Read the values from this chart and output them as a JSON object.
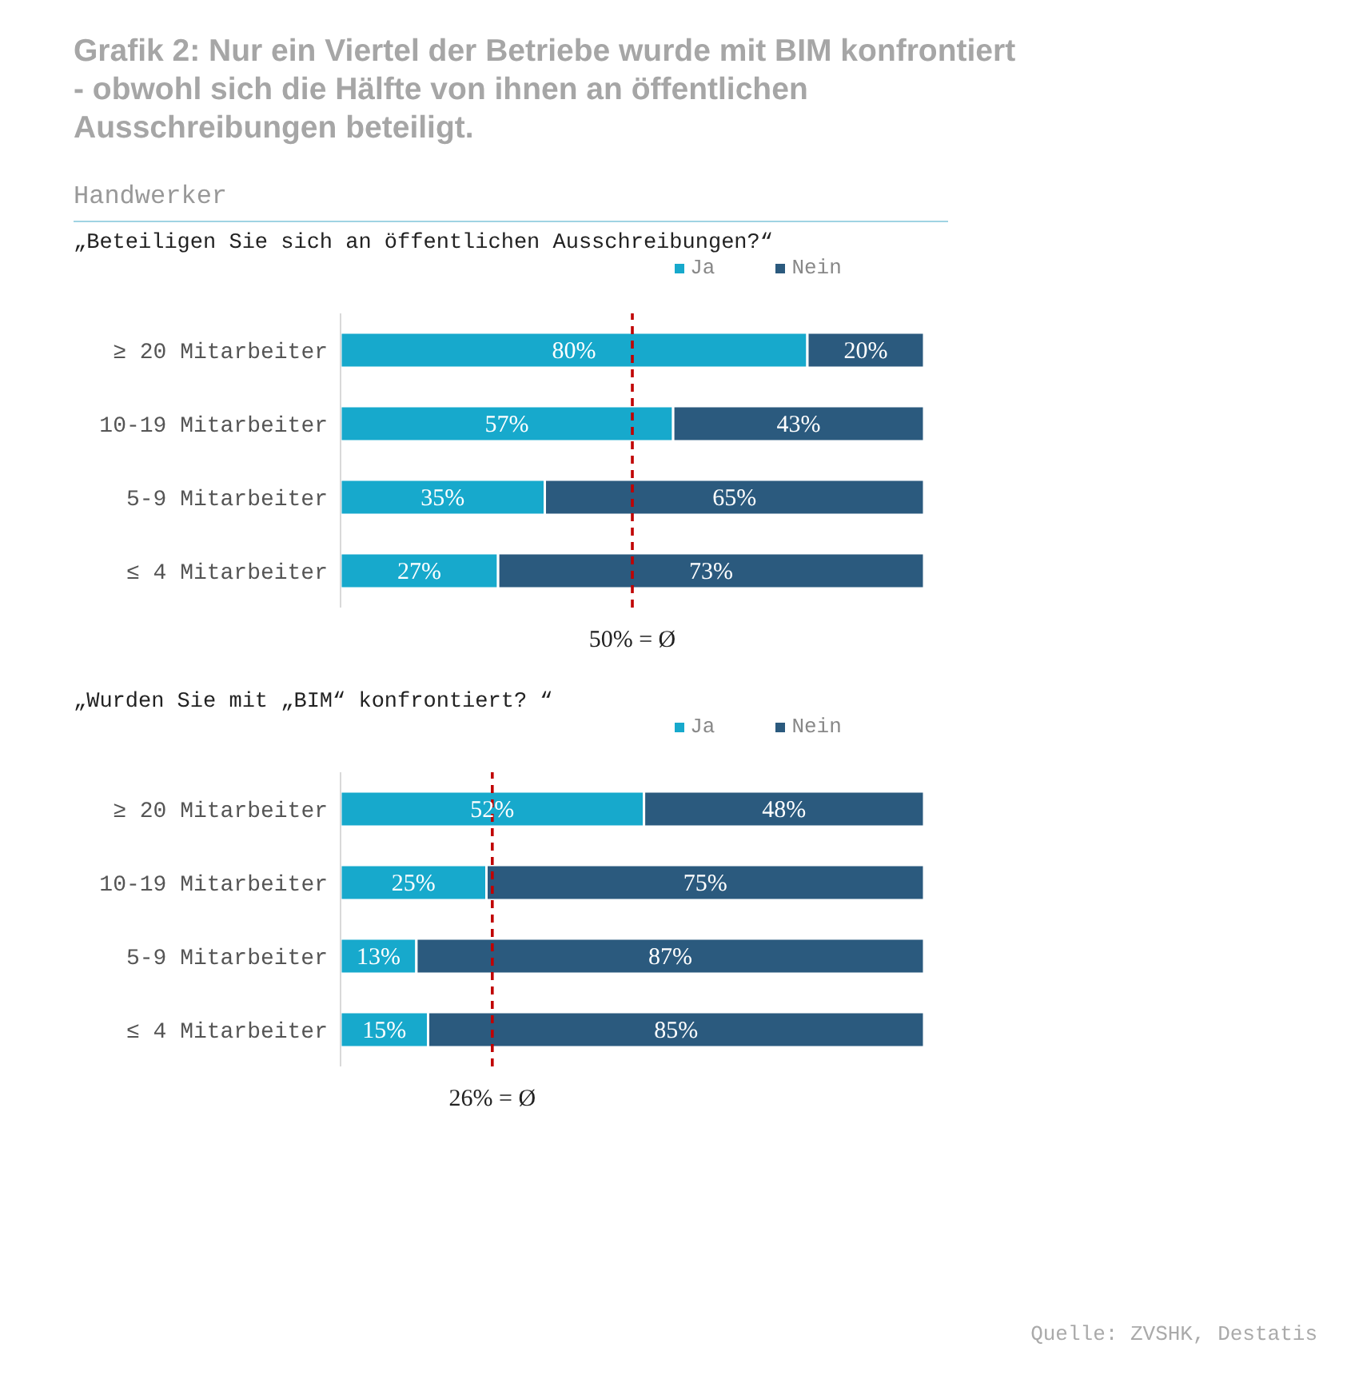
{
  "chart_data": [
    {
      "type": "bar",
      "title": "Grafik 2: Nur ein Viertel der Betriebe wurde mit BIM konfrontiert - obwohl sich die Hälfte von ihnen an öffentlichen Ausschreibungen beteiligt.",
      "subtitle": "Handwerker",
      "annotations": [
        "„Beteiligen Sie sich an öffentlichen Ausschreibungen?“"
      ],
      "orientation": "horizontal",
      "stacked": true,
      "categories": [
        "≥ 20 Mitarbeiter",
        "10-19 Mitarbeiter",
        "5-9 Mitarbeiter",
        "≤ 4 Mitarbeiter"
      ],
      "xlim": [
        0,
        100
      ],
      "tick_labels": "y",
      "legend": "top",
      "grid": false,
      "series": [
        {
          "name": "Ja",
          "color": "#17a9cc",
          "values": [
            80,
            57,
            35,
            27
          ],
          "value_labels": [
            "80%",
            "57%",
            "35%",
            "27%"
          ]
        },
        {
          "name": "Nein",
          "color": "#2b5a7e",
          "values": [
            20,
            43,
            65,
            73
          ],
          "value_labels": [
            "20%",
            "43%",
            "65%",
            "73%"
          ]
        }
      ],
      "ref_lines": [
        {
          "axis": "x",
          "value": 50,
          "label": "50% = Ø",
          "color": "#c00000",
          "line_style": "dashed"
        }
      ]
    },
    {
      "type": "bar",
      "title": "„Wurden Sie mit „BIM“ konfrontiert? “",
      "annotations": [
        "Quelle: ZVSHK, Destatis"
      ],
      "orientation": "horizontal",
      "stacked": true,
      "categories": [
        "≥ 20 Mitarbeiter",
        "10-19 Mitarbeiter",
        "5-9 Mitarbeiter",
        "≤ 4 Mitarbeiter"
      ],
      "xlim": [
        0,
        100
      ],
      "tick_labels": "y",
      "legend": "top",
      "grid": false,
      "series": [
        {
          "name": "Ja",
          "color": "#17a9cc",
          "values": [
            52,
            25,
            13,
            15
          ],
          "value_labels": [
            "52%",
            "25%",
            "13%",
            "15%"
          ]
        },
        {
          "name": "Nein",
          "color": "#2b5a7e",
          "values": [
            48,
            75,
            87,
            85
          ],
          "value_labels": [
            "48%",
            "75%",
            "87%",
            "85%"
          ]
        }
      ],
      "ref_lines": [
        {
          "axis": "x",
          "value": 26,
          "label": "26% = Ø",
          "color": "#c00000",
          "line_style": "dashed"
        }
      ]
    }
  ]
}
